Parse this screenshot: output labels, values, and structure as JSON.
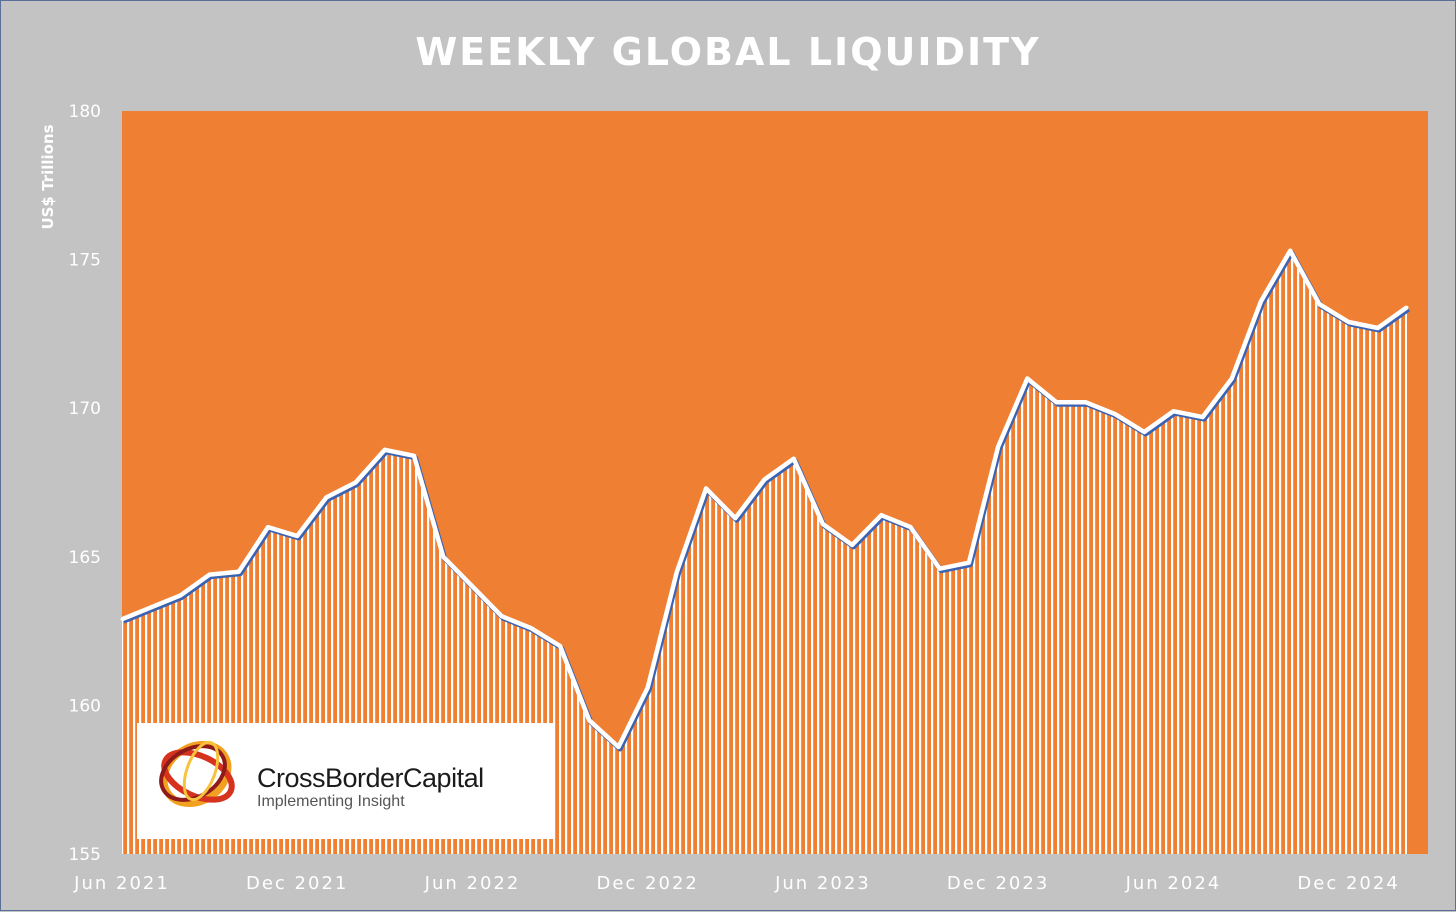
{
  "chart_data": {
    "type": "area",
    "title": "WEEKLY GLOBAL LIQUIDITY",
    "ylabel": "US$ Trillions",
    "xlabel": "",
    "ylim": [
      155,
      180
    ],
    "yticks": [
      "155",
      "160",
      "165",
      "170",
      "175",
      "180"
    ],
    "xticks": [
      "Jun 2021",
      "Dec 2021",
      "Jun 2022",
      "Dec 2022",
      "Jun 2023",
      "Dec 2023",
      "Jun 2024",
      "Dec 2024"
    ],
    "x_start": "2021-06",
    "x_end": "2025-02",
    "grid": false,
    "colors": {
      "plot_bg": "#ee7f33",
      "line": "#ffffff",
      "line_shadow": "#3b63b3",
      "page_bg": "#c3c3c3"
    },
    "series": [
      {
        "x": [
          "2021-06",
          "2021-07",
          "2021-08",
          "2021-09",
          "2021-10",
          "2021-11",
          "2021-12",
          "2022-01",
          "2022-02",
          "2022-03",
          "2022-04",
          "2022-05",
          "2022-06",
          "2022-07",
          "2022-08",
          "2022-09",
          "2022-10",
          "2022-11",
          "2022-12",
          "2023-01",
          "2023-02",
          "2023-03",
          "2023-04",
          "2023-05",
          "2023-06",
          "2023-07",
          "2023-08",
          "2023-09",
          "2023-10",
          "2023-11",
          "2023-12",
          "2024-01",
          "2024-02",
          "2024-03",
          "2024-04",
          "2024-05",
          "2024-06",
          "2024-07",
          "2024-08",
          "2024-09",
          "2024-10",
          "2024-11",
          "2024-12",
          "2025-01",
          "2025-02"
        ],
        "values": [
          162.9,
          163.3,
          163.7,
          164.4,
          164.5,
          166.0,
          165.7,
          167.0,
          167.5,
          168.6,
          168.4,
          165.0,
          164.0,
          163.0,
          162.6,
          162.0,
          159.5,
          158.6,
          160.6,
          164.5,
          167.3,
          166.3,
          167.6,
          168.3,
          166.1,
          165.4,
          166.4,
          166.0,
          164.6,
          164.8,
          168.7,
          171.0,
          170.2,
          170.2,
          169.8,
          169.2,
          169.9,
          169.7,
          171.0,
          173.6,
          175.3,
          173.5,
          172.9,
          172.7,
          173.4
        ]
      }
    ]
  },
  "logo": {
    "name": "CrossBorderCapital",
    "tagline": "Implementing Insight"
  }
}
